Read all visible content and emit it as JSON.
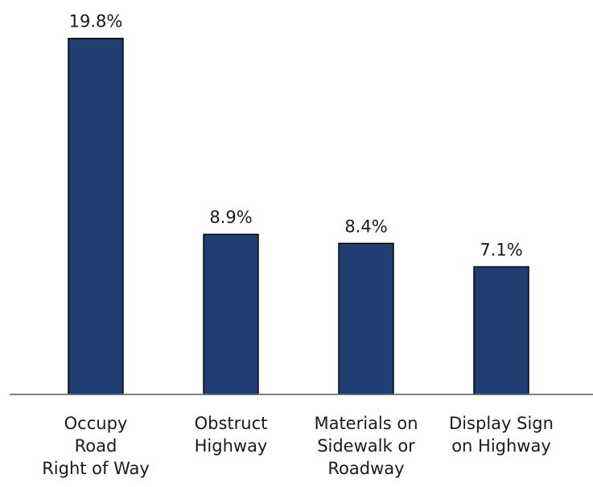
{
  "chart_data": {
    "type": "bar",
    "categories": [
      "Occupy Road Right of Way",
      "Obstruct Highway",
      "Materials on Sidewalk or Roadway",
      "Display Sign on Highway"
    ],
    "category_label_lines": [
      [
        "Occupy",
        "Road",
        "Right of Way"
      ],
      [
        "Obstruct",
        "Highway"
      ],
      [
        "Materials on",
        "Sidewalk or",
        "Roadway"
      ],
      [
        "Display Sign",
        "on Highway"
      ]
    ],
    "values": [
      19.8,
      8.9,
      8.4,
      7.1
    ],
    "value_labels": [
      "19.8%",
      "8.9%",
      "8.4%",
      "7.1%"
    ],
    "title": "",
    "xlabel": "",
    "ylabel": "",
    "ylim": [
      0,
      20
    ],
    "grid": false,
    "legend": "none",
    "bar_color": "#1f3f73"
  }
}
